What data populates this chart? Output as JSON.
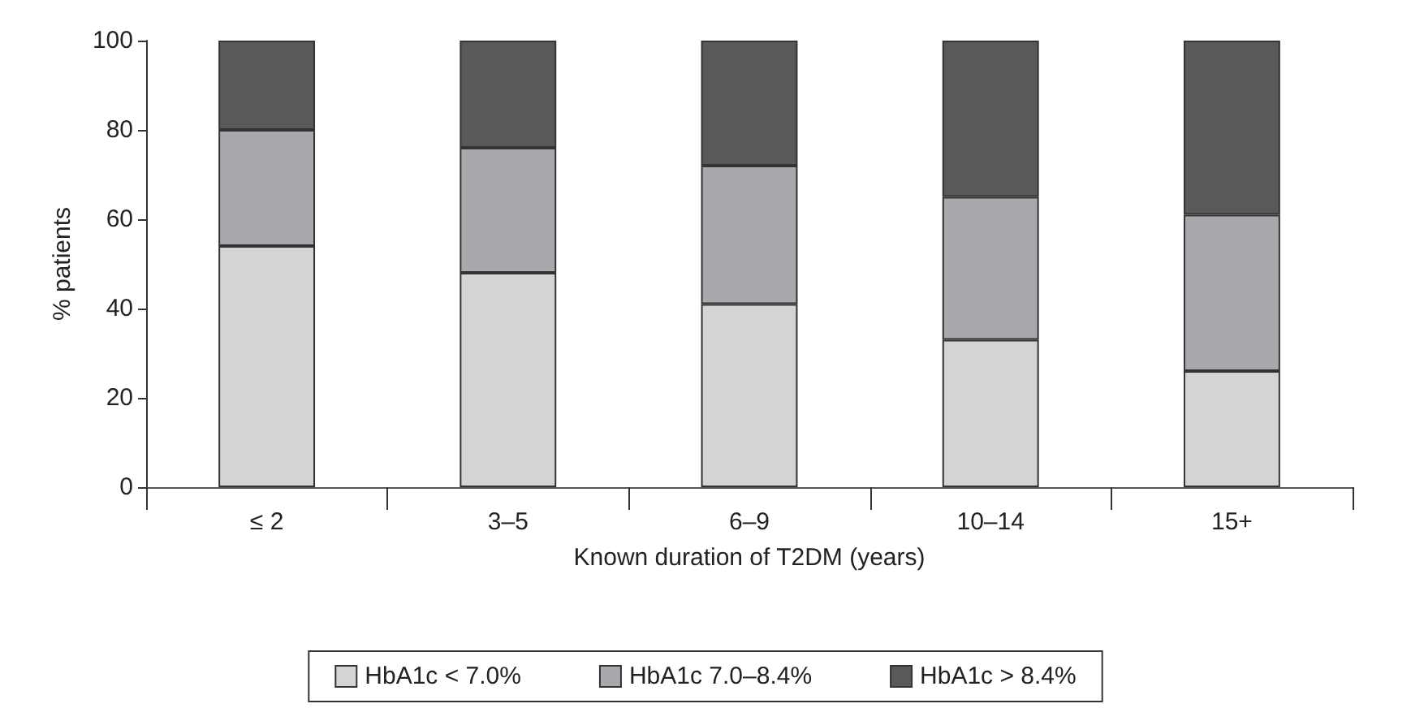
{
  "chart_data": {
    "type": "bar",
    "stacked": true,
    "xlabel": "Known duration of T2DM (years)",
    "ylabel": "% patients",
    "categories": [
      "≤ 2",
      "3–5",
      "6–9",
      "10–14",
      "15+"
    ],
    "series": [
      {
        "name": "HbA1c < 7.0%",
        "color": "#d3d4d6",
        "values": [
          54,
          48,
          41,
          33,
          26
        ]
      },
      {
        "name": "HbA1c 7.0–8.4%",
        "color": "#a8a9ac",
        "values": [
          26,
          28,
          31,
          32,
          35
        ]
      },
      {
        "name": "HbA1c > 8.4%",
        "color": "#58595b",
        "values": [
          20,
          24,
          28,
          35,
          39
        ]
      }
    ],
    "ylim": [
      0,
      100
    ],
    "yticks": [
      0,
      20,
      40,
      60,
      80,
      100
    ],
    "grid": false,
    "legend": "bottom"
  }
}
